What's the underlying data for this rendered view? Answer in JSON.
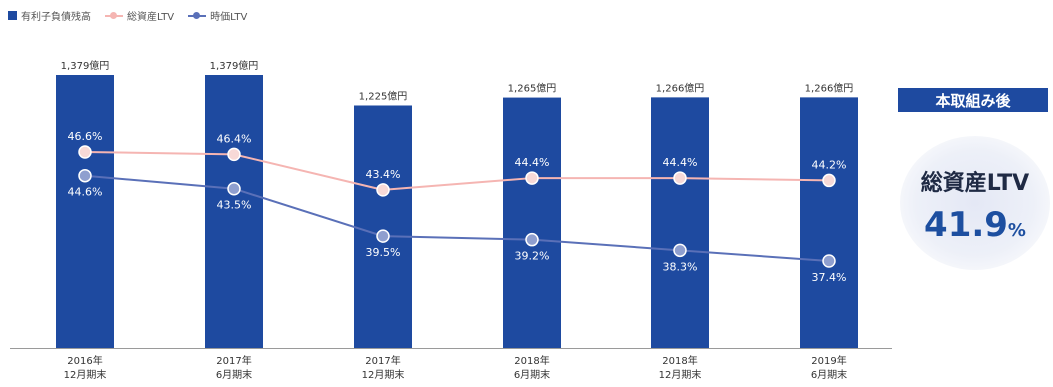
{
  "chart_data": {
    "type": "bar",
    "categories": [
      [
        "2016年",
        "12月期末"
      ],
      [
        "2017年",
        "6月期末"
      ],
      [
        "2017年",
        "12月期末"
      ],
      [
        "2018年",
        "6月期末"
      ],
      [
        "2018年",
        "12月期末"
      ],
      [
        "2019年",
        "6月期末"
      ]
    ],
    "bars": {
      "name": "有利子負債残高",
      "values": [
        1379,
        1379,
        1225,
        1265,
        1266,
        1266
      ],
      "labels": [
        "1,379億円",
        "1,379億円",
        "1,225億円",
        "1,265億円",
        "1,266億円",
        "1,266億円"
      ]
    },
    "lines": [
      {
        "name": "総資産LTV",
        "values": [
          46.6,
          46.4,
          43.4,
          44.4,
          44.4,
          44.2
        ],
        "labels": [
          "46.6%",
          "46.4%",
          "43.4%",
          "44.4%",
          "44.4%",
          "44.2%"
        ]
      },
      {
        "name": "時価LTV",
        "values": [
          44.6,
          43.5,
          39.5,
          39.2,
          38.3,
          37.4
        ],
        "labels": [
          "44.6%",
          "43.5%",
          "39.5%",
          "39.2%",
          "38.3%",
          "37.4%"
        ]
      }
    ],
    "legend_position": "top-left",
    "grid": false
  },
  "colors": {
    "bar": "#1e4aa0",
    "total_ltv": "#f5b5b2",
    "market_ltv": "#5a70b8",
    "badge": "#1e4aa0"
  },
  "panel": {
    "badge": "本取組み後",
    "label": "総資産LTV",
    "value": "41.9",
    "unit": "%"
  }
}
